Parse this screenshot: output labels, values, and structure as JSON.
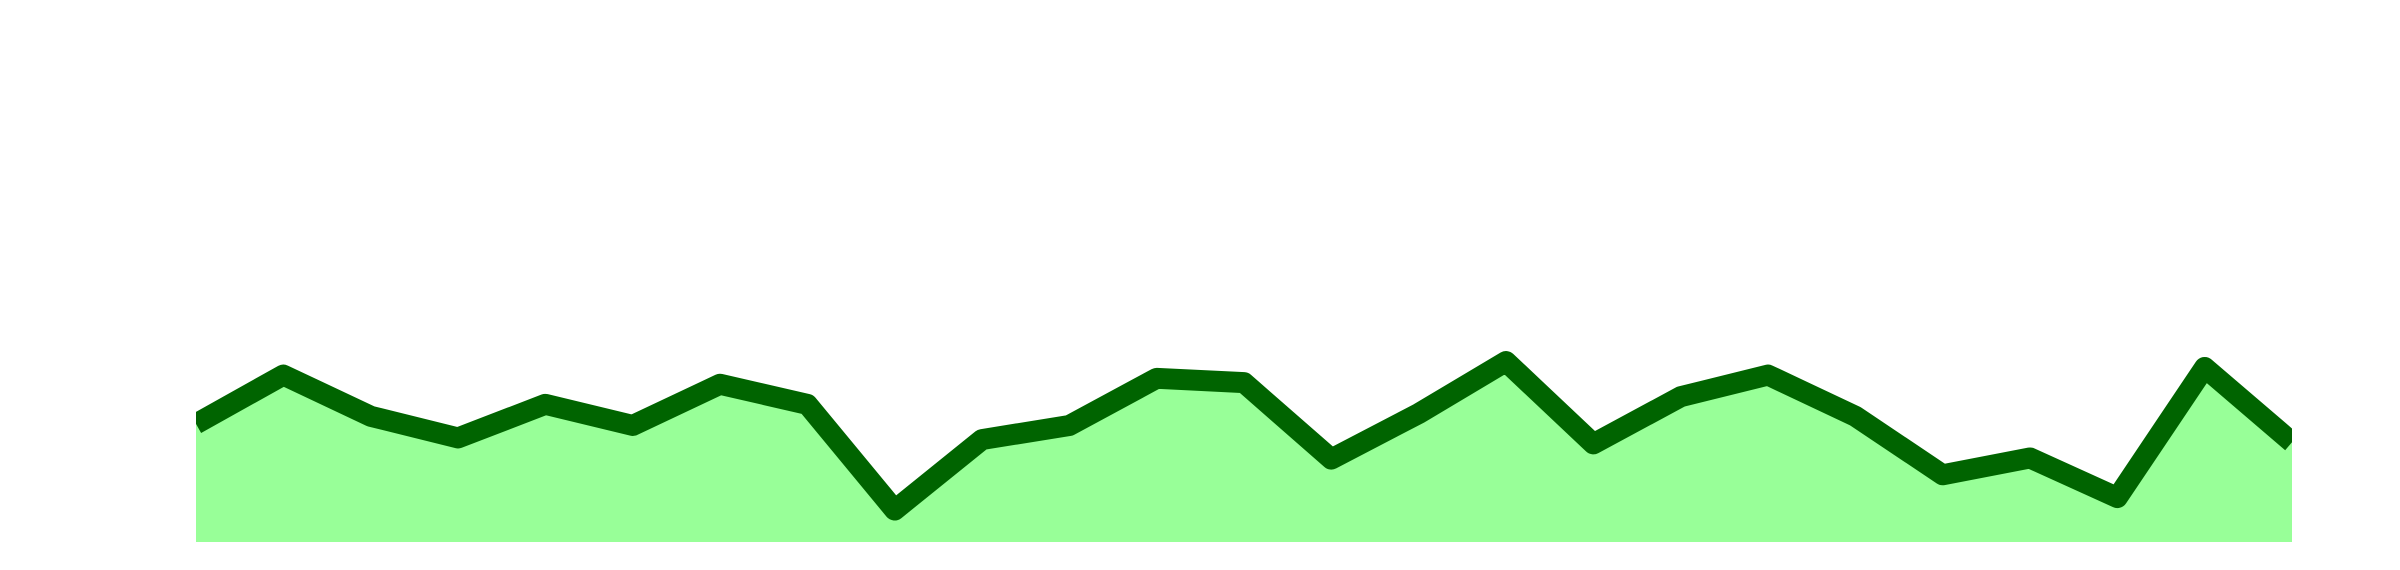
{
  "chart_data": {
    "type": "area",
    "x": [
      0,
      1,
      2,
      3,
      4,
      5,
      6,
      7,
      8,
      9,
      10,
      11,
      12,
      13,
      14,
      15,
      16,
      17,
      18,
      19,
      20,
      21,
      22,
      23,
      24
    ],
    "series": [
      {
        "color": "#006400",
        "fill": "#98ff98",
        "values": [
          21.8,
          30.8,
          23.2,
          19.2,
          25.4,
          21.5,
          29.1,
          25.4,
          5.9,
          18.9,
          21.5,
          30.2,
          29.4,
          15.3,
          23.7,
          33.3,
          18.1,
          26.8,
          30.8,
          23.2,
          12.4,
          15.5,
          8.2,
          32.2,
          18.4
        ]
      }
    ],
    "xlim": [
      0,
      24
    ],
    "ylim": [
      0,
      100
    ]
  }
}
